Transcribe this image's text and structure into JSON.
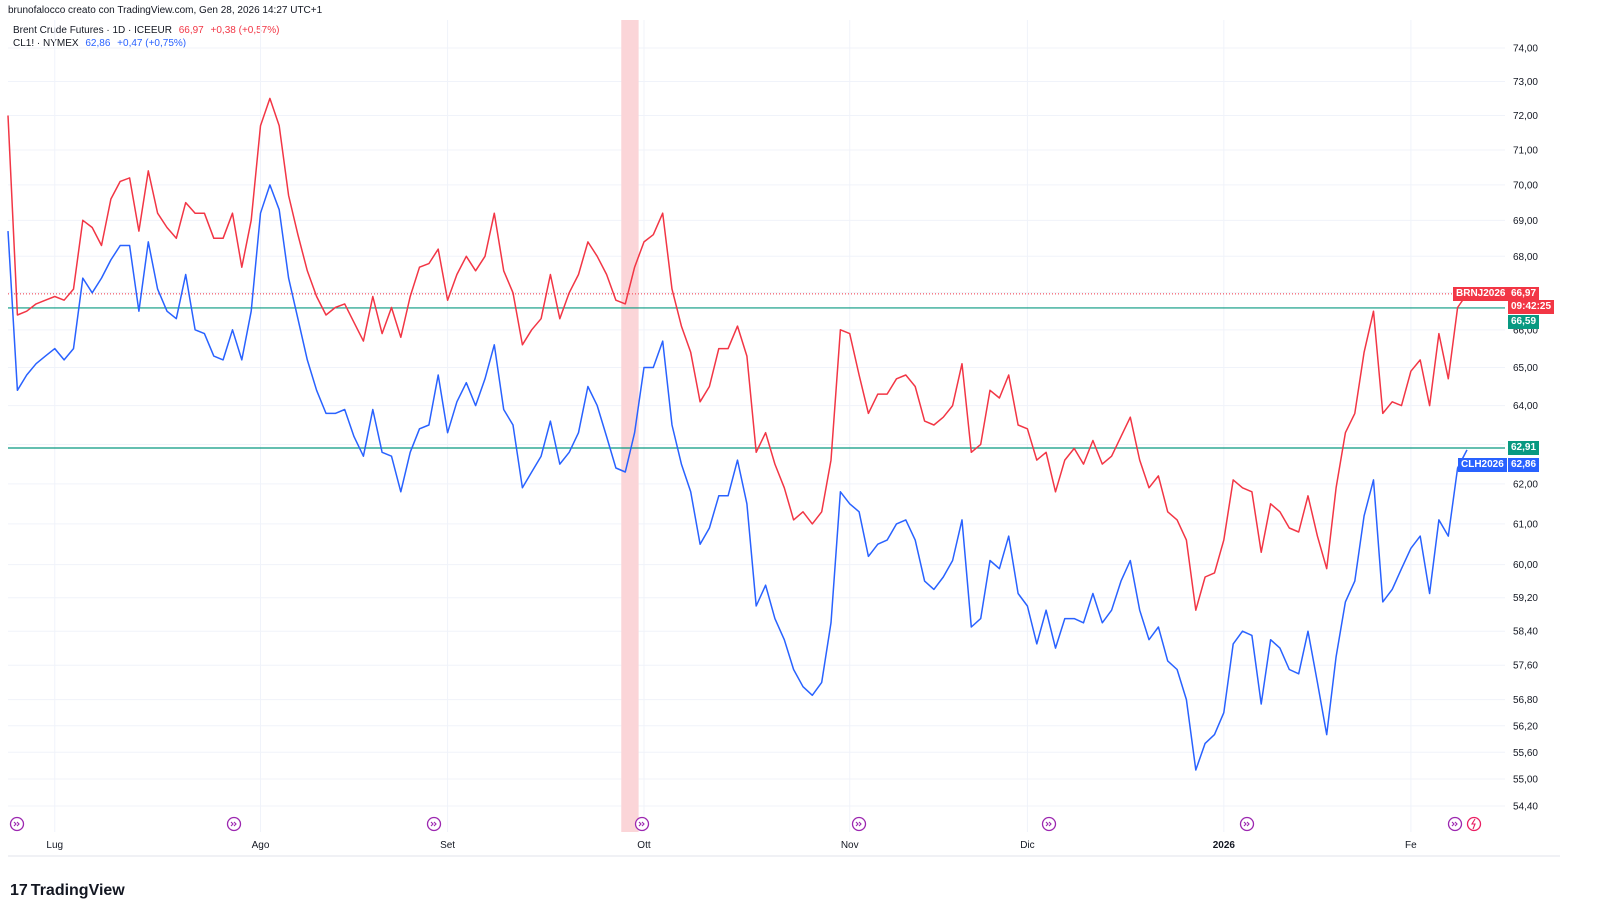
{
  "header": {
    "text": "brunofalocco creato con TradingView.com, Gen 28, 2026 14:27 UTC+1"
  },
  "legend": [
    {
      "title": "Brent Crude Futures · 1D · ICEEUR",
      "value": "66,97",
      "change": "+0,38 (+0,57%)",
      "color": "#f23645"
    },
    {
      "title": "CL1! · NYMEX",
      "value": "62,86",
      "change": "+0,47 (+0,75%)",
      "color": "#2962ff"
    }
  ],
  "logo": {
    "mark": "17",
    "text": "TradingView"
  },
  "badges": {
    "brn_ticker": "BRNJ2026",
    "brn_price": "66,97",
    "brn_time": "09:42:25",
    "green_high": "66,59",
    "green_low": "62,91",
    "cl_ticker": "CLH2026",
    "cl_price": "62,86"
  },
  "colors": {
    "red": "#f23645",
    "blue": "#2962ff",
    "green": "#089981",
    "highlight": "#fbd5d8"
  },
  "chart_data": {
    "type": "line",
    "y_scale": "log",
    "ylim": [
      54.0,
      74.5
    ],
    "x_ticks": [
      "Lug",
      "Ago",
      "Set",
      "Ott",
      "Nov",
      "Dic",
      "2026",
      "Fe"
    ],
    "x_tick_index": [
      5,
      27,
      47,
      68,
      90,
      109,
      130,
      150
    ],
    "y_ticks": [
      54.4,
      55.0,
      55.6,
      56.2,
      56.8,
      57.6,
      58.4,
      59.2,
      60.0,
      61.0,
      62.0,
      63.0,
      64.0,
      65.0,
      66.0,
      67.0,
      68.0,
      69.0,
      70.0,
      71.0,
      72.0,
      73.0,
      74.0
    ],
    "y_tick_labels": [
      "54,40",
      "55,00",
      "55,60",
      "56,20",
      "56,80",
      "57,60",
      "58,40",
      "59,20",
      "60,00",
      "61,00",
      "62,00",
      "63,00",
      "64,00",
      "65,00",
      "66,00",
      "67,00",
      "68,00",
      "69,00",
      "70,00",
      "71,00",
      "72,00",
      "73,00",
      "74,00"
    ],
    "horizontal_lines": [
      66.59,
      62.91
    ],
    "last_price_line": 66.97,
    "highlight_band": [
      66,
      67
    ],
    "series": [
      {
        "name": "Brent Crude Futures",
        "values": [
          72.0,
          66.4,
          66.5,
          66.7,
          66.8,
          66.9,
          66.8,
          67.1,
          69.0,
          68.8,
          68.3,
          69.6,
          70.1,
          70.2,
          68.7,
          70.4,
          69.2,
          68.8,
          68.5,
          69.5,
          69.2,
          69.2,
          68.5,
          68.5,
          69.2,
          67.7,
          69.0,
          71.7,
          72.5,
          71.7,
          69.7,
          68.6,
          67.6,
          66.9,
          66.4,
          66.6,
          66.7,
          66.2,
          65.7,
          66.9,
          65.9,
          66.6,
          65.8,
          66.9,
          67.7,
          67.8,
          68.2,
          66.8,
          67.5,
          68.0,
          67.6,
          68.0,
          69.2,
          67.6,
          67.0,
          65.6,
          66.0,
          66.3,
          67.5,
          66.3,
          67.0,
          67.5,
          68.4,
          68.0,
          67.5,
          66.8,
          66.7,
          67.7,
          68.4,
          68.6,
          69.2,
          67.1,
          66.1,
          65.4,
          64.1,
          64.5,
          65.5,
          65.5,
          66.1,
          65.3,
          62.8,
          63.3,
          62.5,
          61.9,
          61.1,
          61.3,
          61.0,
          61.3,
          62.6,
          66.0,
          65.9,
          64.8,
          63.8,
          64.3,
          64.3,
          64.7,
          64.8,
          64.5,
          63.6,
          63.5,
          63.7,
          64.0,
          65.1,
          62.8,
          63.0,
          64.4,
          64.2,
          64.8,
          63.5,
          63.4,
          62.6,
          62.8,
          61.8,
          62.6,
          62.9,
          62.5,
          63.1,
          62.5,
          62.7,
          63.2,
          63.7,
          62.6,
          61.9,
          62.2,
          61.3,
          61.1,
          60.6,
          58.9,
          59.7,
          59.8,
          60.6,
          62.1,
          61.9,
          61.8,
          60.3,
          61.5,
          61.3,
          60.9,
          60.8,
          61.7,
          60.7,
          59.9,
          61.9,
          63.3,
          63.8,
          65.4,
          66.5,
          63.8,
          64.1,
          64.0,
          64.9,
          65.2,
          64.0,
          65.9,
          64.7,
          66.6,
          66.97
        ]
      },
      {
        "name": "CL1!",
        "values": [
          68.7,
          64.4,
          64.8,
          65.1,
          65.3,
          65.5,
          65.2,
          65.5,
          67.4,
          67.0,
          67.4,
          67.9,
          68.3,
          68.3,
          66.5,
          68.4,
          67.1,
          66.5,
          66.3,
          67.5,
          66.0,
          65.9,
          65.3,
          65.2,
          66.0,
          65.2,
          66.5,
          69.2,
          70.0,
          69.3,
          67.4,
          66.3,
          65.2,
          64.4,
          63.8,
          63.8,
          63.9,
          63.2,
          62.7,
          63.9,
          62.8,
          62.7,
          61.8,
          62.8,
          63.4,
          63.5,
          64.8,
          63.3,
          64.1,
          64.6,
          64.0,
          64.7,
          65.6,
          63.9,
          63.5,
          61.9,
          62.3,
          62.7,
          63.6,
          62.5,
          62.8,
          63.3,
          64.5,
          64.0,
          63.2,
          62.4,
          62.3,
          63.3,
          65.0,
          65.0,
          65.7,
          63.5,
          62.5,
          61.8,
          60.5,
          60.9,
          61.7,
          61.7,
          62.6,
          61.5,
          59.0,
          59.5,
          58.7,
          58.2,
          57.5,
          57.1,
          56.9,
          57.2,
          58.6,
          61.8,
          61.5,
          61.3,
          60.2,
          60.5,
          60.6,
          61.0,
          61.1,
          60.6,
          59.6,
          59.4,
          59.7,
          60.1,
          61.1,
          58.5,
          58.7,
          60.1,
          59.9,
          60.7,
          59.3,
          59.0,
          58.1,
          58.9,
          58.0,
          58.7,
          58.7,
          58.6,
          59.3,
          58.6,
          58.9,
          59.6,
          60.1,
          58.9,
          58.2,
          58.5,
          57.7,
          57.5,
          56.8,
          55.2,
          55.8,
          56.0,
          56.5,
          58.1,
          58.4,
          58.3,
          56.7,
          58.2,
          58.0,
          57.5,
          57.4,
          58.4,
          57.2,
          56.0,
          57.8,
          59.1,
          59.6,
          61.2,
          62.1,
          59.1,
          59.4,
          59.9,
          60.4,
          60.7,
          59.3,
          61.1,
          60.7,
          62.4,
          62.86
        ]
      }
    ]
  }
}
